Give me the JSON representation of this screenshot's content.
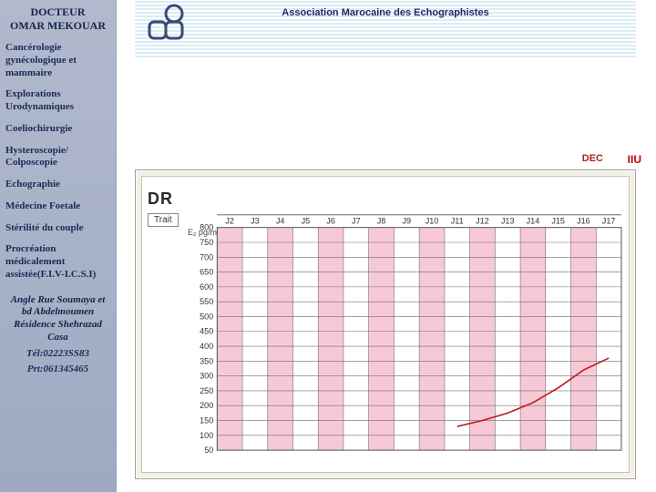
{
  "sidebar": {
    "doctor_title": "DOCTEUR",
    "doctor_name": "OMAR MEKOUAR",
    "items": [
      "Cancérologie gynécologique et mammaire",
      "Explorations Urodynamiques",
      "Coeliochirurgie",
      "Hysteroscopie/ Colposcopie",
      "Echographie",
      "Médecine Foetale",
      "Stérilité du couple",
      "Procréation médicalement assistée(F.I.V-I.C.S.I)"
    ],
    "address": "Angle Rue Soumaya et bd Abdelmoumen Résidence Shehrazad Casa",
    "tel": "Tél:02223SS83",
    "prt": "Prt:061345465"
  },
  "banner": {
    "title": "Association Marocaine des Echographistes",
    "line_color": "#b6d9e9",
    "deco_stroke": "#3a4a78"
  },
  "tags": {
    "dec": "DEC",
    "iiu": "IIU"
  },
  "chart": {
    "type": "line",
    "card_bg": "#f4efe7",
    "inner_bg": "#ffffff",
    "dr_label": "DR",
    "trait_label": "Trait",
    "unit_label": "E₂ pg/ml",
    "x_labels": [
      "J2",
      "J3",
      "J4",
      "J5",
      "J6",
      "J7",
      "J8",
      "J9",
      "J10",
      "J11",
      "J12",
      "J13",
      "J14",
      "J15",
      "J16",
      "J17"
    ],
    "y_ticks": [
      50,
      100,
      150,
      200,
      250,
      300,
      350,
      400,
      450,
      500,
      550,
      600,
      650,
      700,
      750,
      800
    ],
    "ylim": [
      50,
      800
    ],
    "band_color": "#f7c9d6",
    "band_alt_color": "#ffffff",
    "grid_color": "#6d6d6d",
    "grid_width": 0.6,
    "line_color": "#c01818",
    "line_width": 1.6,
    "tick_fontsize": 9,
    "xlabel_fontsize": 9,
    "series": {
      "x": [
        "J11",
        "J12",
        "J13",
        "J14",
        "J15",
        "J16",
        "J17"
      ],
      "y": [
        130,
        150,
        175,
        210,
        260,
        320,
        360
      ]
    }
  }
}
